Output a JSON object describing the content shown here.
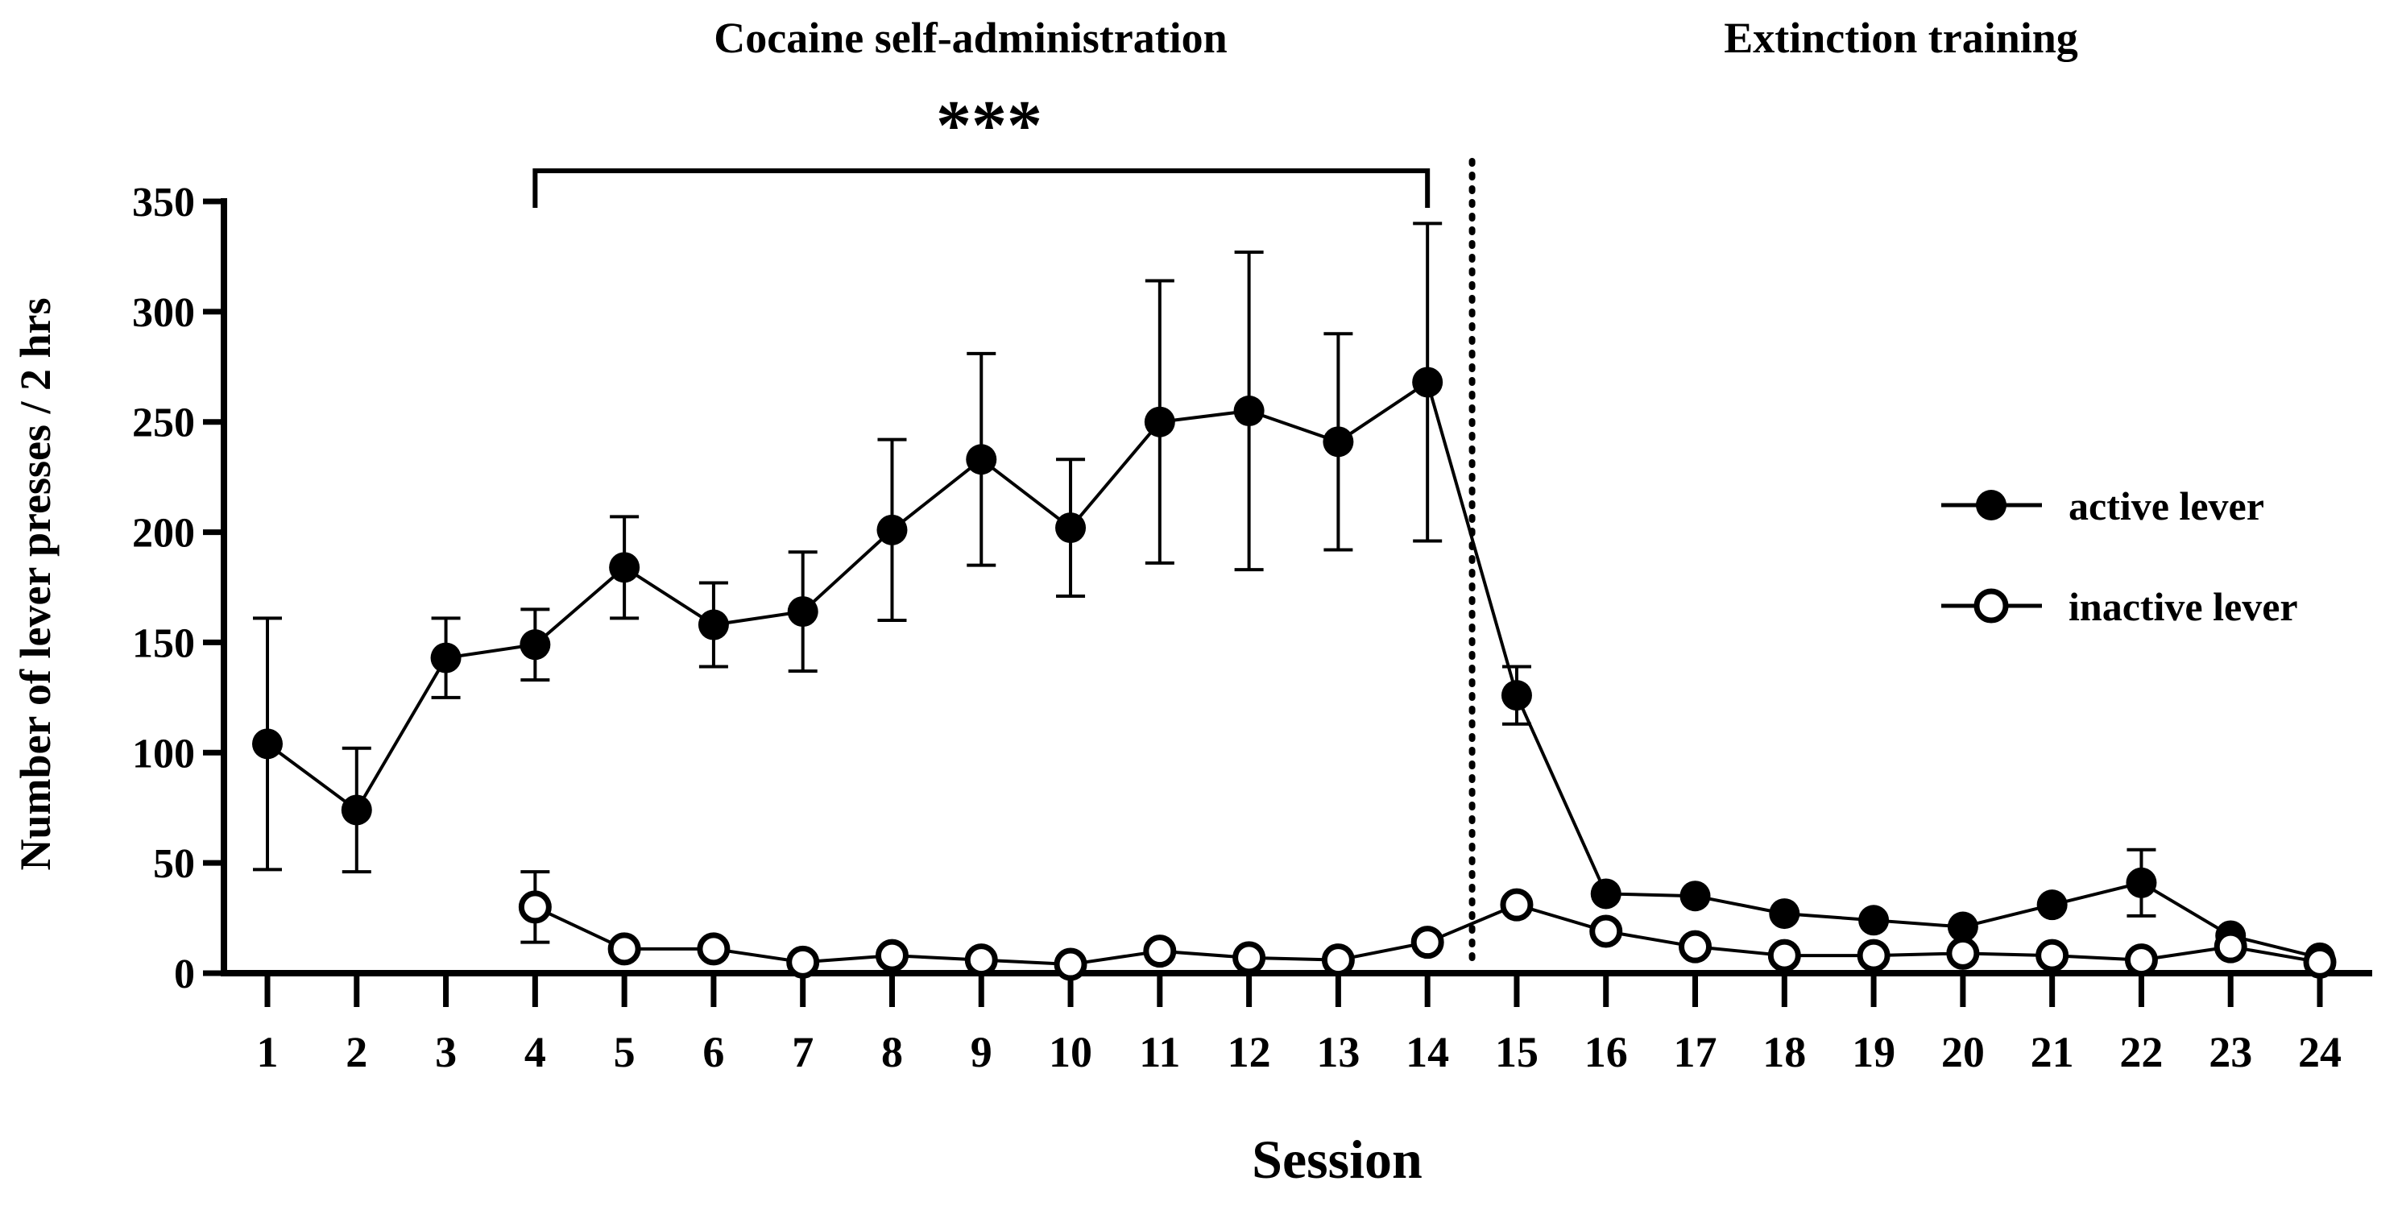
{
  "chart_data": {
    "type": "line",
    "phase_labels": [
      "Cocaine self-administration",
      "Extinction training"
    ],
    "significance": "***",
    "xlabel": "Session",
    "ylabel": "Number of lever presses / 2 hrs",
    "xlim": [
      1,
      24
    ],
    "ylim": [
      0,
      350
    ],
    "y_ticks": [
      0,
      50,
      100,
      150,
      200,
      250,
      300,
      350
    ],
    "x_ticks": [
      1,
      2,
      3,
      4,
      5,
      6,
      7,
      8,
      9,
      10,
      11,
      12,
      13,
      14,
      15,
      16,
      17,
      18,
      19,
      20,
      21,
      22,
      23,
      24
    ],
    "phase_divider_x": 14.5,
    "bracket_range": [
      4,
      14
    ],
    "legend_position": "right",
    "series": [
      {
        "name": "active lever",
        "marker": "filled-circle",
        "x": [
          1,
          2,
          3,
          4,
          5,
          6,
          7,
          8,
          9,
          10,
          11,
          12,
          13,
          14,
          15,
          16,
          17,
          18,
          19,
          20,
          21,
          22,
          23,
          24
        ],
        "values": [
          104,
          74,
          143,
          149,
          184,
          158,
          164,
          201,
          233,
          202,
          250,
          255,
          241,
          268,
          126,
          36,
          35,
          27,
          24,
          21,
          31,
          41,
          17,
          7
        ],
        "error": [
          57,
          28,
          18,
          16,
          23,
          19,
          27,
          41,
          48,
          31,
          64,
          72,
          49,
          72,
          13,
          0,
          0,
          0,
          0,
          0,
          0,
          15,
          0,
          0
        ]
      },
      {
        "name": "inactive lever",
        "marker": "open-circle",
        "x": [
          4,
          5,
          6,
          7,
          8,
          9,
          10,
          11,
          12,
          13,
          14,
          15,
          16,
          17,
          18,
          19,
          20,
          21,
          22,
          23,
          24
        ],
        "values": [
          30,
          11,
          11,
          5,
          8,
          6,
          4,
          10,
          7,
          6,
          14,
          31,
          19,
          12,
          8,
          8,
          9,
          8,
          6,
          12,
          5
        ],
        "error": [
          16,
          0,
          0,
          0,
          0,
          0,
          0,
          0,
          0,
          0,
          0,
          0,
          0,
          0,
          0,
          0,
          0,
          0,
          0,
          0,
          0
        ]
      }
    ]
  }
}
